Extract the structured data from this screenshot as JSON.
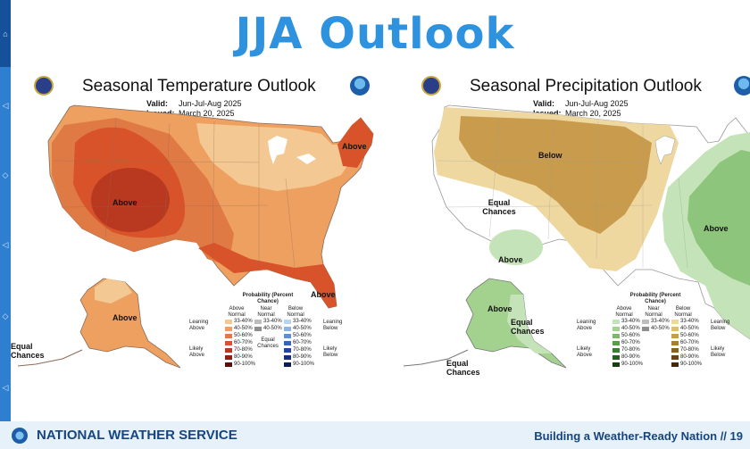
{
  "page_title": "JJA Outlook",
  "temperature": {
    "title": "Seasonal Temperature Outlook",
    "valid_label": "Valid:",
    "valid_value": "Jun-Jul-Aug 2025",
    "issued_label": "Issued:",
    "issued_value": "March 20, 2025",
    "region_labels": [
      "Above",
      "Above",
      "Above",
      "Above"
    ],
    "alaska_equal": "Equal Chances",
    "legend": {
      "title": "Probability (Percent Chance)",
      "headers": [
        "Above Normal",
        "Near Normal",
        "Below Normal"
      ],
      "side_labels": [
        "Leaning Above",
        "Likely Above",
        "Equal Chances",
        "Leaning Below",
        "Likely Below"
      ],
      "above": [
        "33-40%",
        "40-50%",
        "50-60%",
        "60-70%",
        "70-80%",
        "80-90%",
        "90-100%"
      ],
      "near": [
        "33-40%",
        "40-50%"
      ],
      "below": [
        "33-40%",
        "40-50%",
        "50-60%",
        "60-70%",
        "70-80%",
        "80-90%",
        "90-100%"
      ],
      "above_colors": [
        "#f4c892",
        "#eea061",
        "#e6783f",
        "#d9532a",
        "#b8391f",
        "#8f2015",
        "#5c0d0d"
      ],
      "near_colors": [
        "#bdbdbd",
        "#8f8f8f"
      ],
      "below_colors": [
        "#bcd3ef",
        "#8ab4e2",
        "#5b91d2",
        "#3466b7",
        "#21479a",
        "#17307c",
        "#0e1c57"
      ]
    }
  },
  "precipitation": {
    "title": "Seasonal Precipitation Outlook",
    "valid_label": "Valid:",
    "valid_value": "Jun-Jul-Aug 2025",
    "issued_label": "Issued:",
    "issued_value": "March 20, 2025",
    "region_labels": [
      "Below",
      "Equal Chances",
      "Above",
      "Above",
      "Above",
      "Equal Chances",
      "Equal Chances"
    ],
    "legend": {
      "title": "Probability (Percent Chance)",
      "headers": [
        "Above Normal",
        "Near Normal",
        "Below Normal"
      ],
      "side_labels": [
        "Leaning Above",
        "Likely Above",
        "Leaning Below",
        "Likely Below"
      ],
      "above": [
        "33-40%",
        "40-50%",
        "50-60%",
        "60-70%",
        "70-80%",
        "80-90%",
        "90-100%"
      ],
      "near": [
        "33-40%",
        "40-50%"
      ],
      "below": [
        "33-40%",
        "40-50%",
        "50-60%",
        "60-70%",
        "70-80%",
        "80-90%",
        "90-100%"
      ],
      "above_colors": [
        "#c5e3b8",
        "#a3d28f",
        "#79ba68",
        "#53a046",
        "#36802f",
        "#22601e",
        "#14400f"
      ],
      "near_colors": [
        "#bdbdbd",
        "#8f8f8f"
      ],
      "below_colors": [
        "#efd8a0",
        "#e1bd6f",
        "#c99c4d",
        "#ad7d34",
        "#8c5f22",
        "#6a4314",
        "#452a0a"
      ]
    }
  },
  "footer": {
    "org": "NATIONAL WEATHER SERVICE",
    "tagline": "Building a Weather-Ready Nation  //  19"
  },
  "colors": {
    "title_blue": "#2f92de",
    "footer_bg": "#e6f1fa",
    "footer_text": "#17457f",
    "temp_light": "#f4c892",
    "temp_mid": "#e88f52",
    "temp_strong": "#d9532a",
    "temp_core": "#b8391f",
    "precip_dry_light": "#efd8a0",
    "precip_dry": "#c99c4d",
    "precip_wet_light": "#c5e3b8",
    "precip_wet": "#8cc57b"
  }
}
